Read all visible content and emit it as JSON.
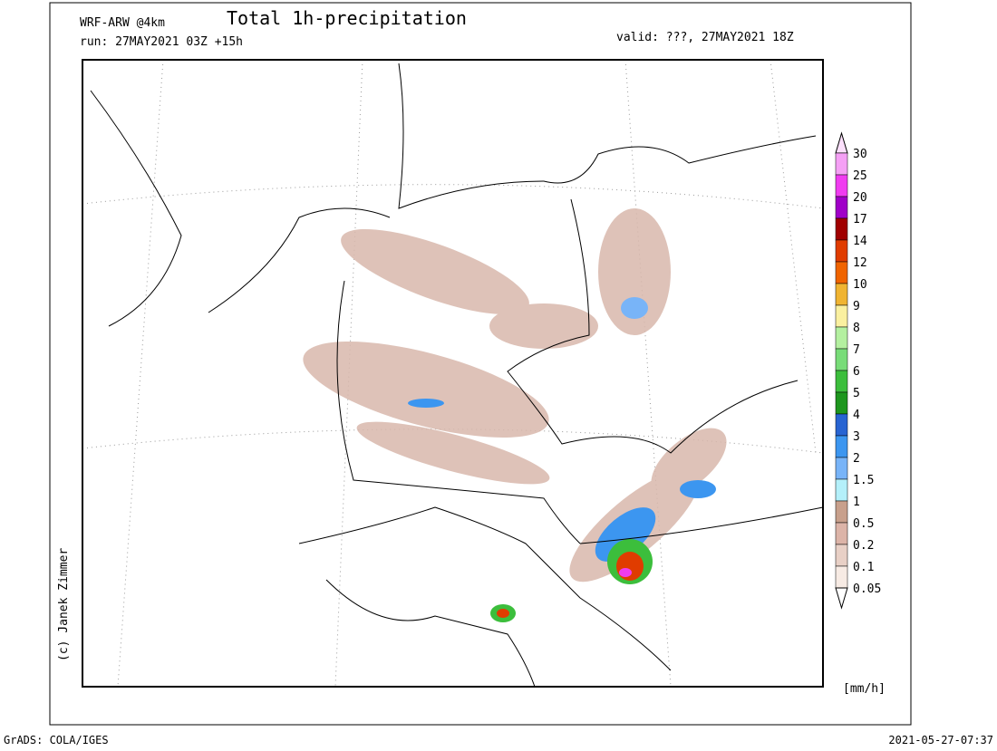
{
  "header": {
    "model": "WRF-ARW @4km",
    "title": "Total 1h-precipitation",
    "run": "run: 27MAY2021 03Z +15h",
    "valid": "valid: ???, 27MAY2021 18Z"
  },
  "legend": {
    "labels": [
      30,
      25,
      20,
      17,
      14,
      12,
      10,
      9,
      8,
      7,
      6,
      5,
      4,
      3,
      2,
      1.5,
      1,
      0.5,
      0.2,
      0.1,
      0.05
    ],
    "colors": [
      "#f5a0f5",
      "#f03cf0",
      "#a000c8",
      "#a00000",
      "#e03c00",
      "#f06400",
      "#f0b432",
      "#faf0a0",
      "#b4f0a0",
      "#78dc78",
      "#3cbe3c",
      "#1e961e",
      "#2864d2",
      "#3c96f0",
      "#78b4f8",
      "#b4f0fa",
      "#c8a08c",
      "#dcb4a8",
      "#e8d0c6",
      "#f7ebe4"
    ],
    "top_color": "#fce0fc",
    "bottom_color": "#ffffff",
    "unit": "[mm/h]"
  },
  "credit": "(c) Janek Zimmer",
  "footer": {
    "left": "GrADS: COLA/IGES",
    "right": "2021-05-27-07:37"
  }
}
